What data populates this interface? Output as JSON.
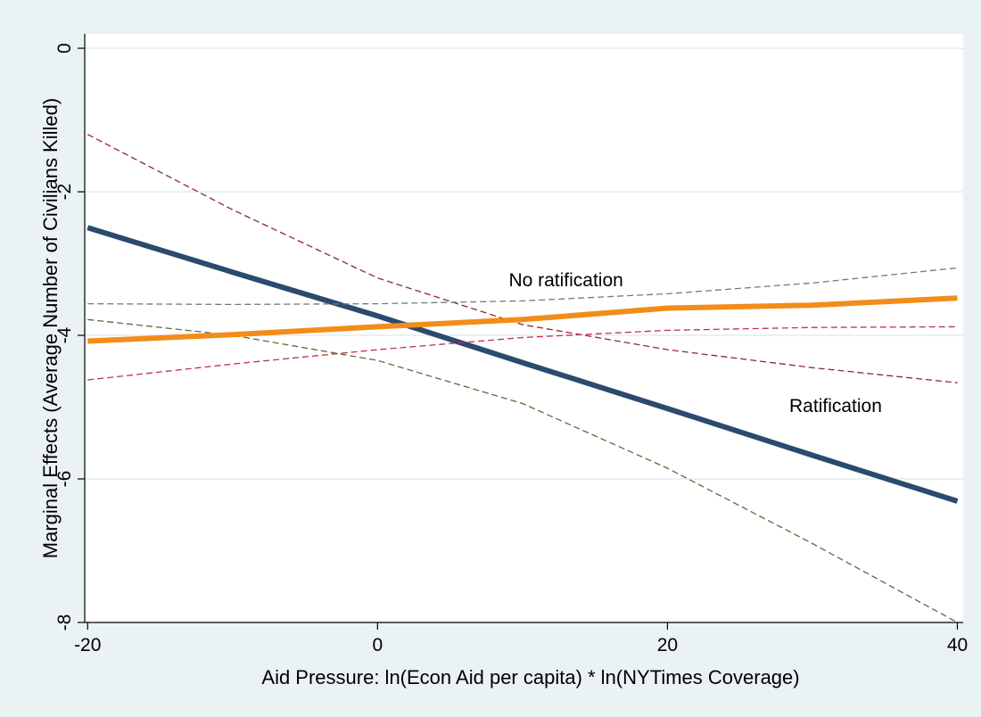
{
  "chart_data": {
    "type": "line",
    "title": "",
    "xlabel": "Aid Pressure: ln(Econ Aid per capita) * ln(NYTimes Coverage)",
    "ylabel": "Marginal Effects (Average Number of Civilians Killed)",
    "xlim": [
      -20.2,
      40.4
    ],
    "ylim": [
      -8.0,
      0.2
    ],
    "xticks": [
      -20,
      0,
      20,
      40
    ],
    "yticks": [
      0,
      -2,
      -4,
      -6,
      -8
    ],
    "xtick_labels": [
      "-20",
      "0",
      "20",
      "40"
    ],
    "ytick_labels": [
      "0",
      "-2",
      "-4",
      "-6",
      "-8"
    ],
    "grid": true,
    "legend": "none",
    "annotations": [
      {
        "text": "No ratification",
        "x": 13,
        "y": -3.25
      },
      {
        "text": "Ratification",
        "x": 31.6,
        "y": -5.0
      }
    ],
    "x": [
      -20,
      -10,
      0,
      10,
      20,
      30,
      40
    ],
    "series": [
      {
        "values": [
          -2.5,
          -3.12,
          -3.73,
          -4.38,
          -5.02,
          -5.67,
          -6.31
        ],
        "color": "#2b4a6e",
        "style": "solid",
        "width": 6
      },
      {
        "values": [
          -1.2,
          -2.25,
          -3.2,
          -3.85,
          -4.2,
          -4.45,
          -4.66
        ],
        "color": "#8b2a2a",
        "style": "dashed",
        "width": 1.3
      },
      {
        "values": [
          -3.78,
          -4.0,
          -4.35,
          -4.95,
          -5.85,
          -6.9,
          -8.0
        ],
        "color": "#5a6b3a",
        "style": "dashed",
        "width": 1.3
      },
      {
        "values": [
          -4.08,
          -3.99,
          -3.88,
          -3.78,
          -3.62,
          -3.58,
          -3.48
        ],
        "color": "#f28c1a",
        "style": "solid",
        "width": 6
      },
      {
        "values": [
          -3.56,
          -3.57,
          -3.56,
          -3.52,
          -3.42,
          -3.27,
          -3.06
        ],
        "color": "#6b7f7c",
        "style": "dashed",
        "width": 1.3
      },
      {
        "values": [
          -4.62,
          -4.4,
          -4.2,
          -4.03,
          -3.93,
          -3.89,
          -3.88
        ],
        "color": "#c0304a",
        "style": "dashed",
        "width": 1.3
      }
    ]
  }
}
